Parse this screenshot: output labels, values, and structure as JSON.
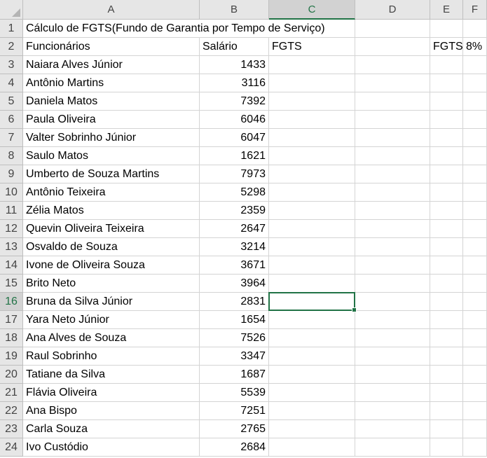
{
  "columns": [
    {
      "letter": "A"
    },
    {
      "letter": "B"
    },
    {
      "letter": "C"
    },
    {
      "letter": "D"
    },
    {
      "letter": "E"
    },
    {
      "letter": "F"
    }
  ],
  "selected_cell": {
    "column": "C",
    "row": 16
  },
  "title": "Cálculo de FGTS(Fundo de Garantia por Tempo de Serviço)",
  "headers": {
    "A": "Funcionários",
    "B": "Salário",
    "C": "FGTS",
    "E": "FGTS",
    "F": "8%"
  },
  "employees": [
    {
      "name": "Naiara Alves Júnior",
      "salary": 1433
    },
    {
      "name": "Antônio Martins",
      "salary": 3116
    },
    {
      "name": "Daniela Matos",
      "salary": 7392
    },
    {
      "name": "Paula Oliveira",
      "salary": 6046
    },
    {
      "name": "Valter Sobrinho Júnior",
      "salary": 6047
    },
    {
      "name": "Saulo Matos",
      "salary": 1621
    },
    {
      "name": "Umberto de Souza Martins",
      "salary": 7973
    },
    {
      "name": "Antônio Teixeira",
      "salary": 5298
    },
    {
      "name": "Zélia Matos",
      "salary": 2359
    },
    {
      "name": "Quevin Oliveira Teixeira",
      "salary": 2647
    },
    {
      "name": "Osvaldo de Souza",
      "salary": 3214
    },
    {
      "name": "Ivone de Oliveira Souza",
      "salary": 3671
    },
    {
      "name": "Brito Neto",
      "salary": 3964
    },
    {
      "name": "Bruna da Silva Júnior",
      "salary": 2831
    },
    {
      "name": "Yara Neto Júnior",
      "salary": 1654
    },
    {
      "name": "Ana Alves de Souza",
      "salary": 7526
    },
    {
      "name": "Raul Sobrinho",
      "salary": 3347
    },
    {
      "name": "Tatiane da Silva",
      "salary": 1687
    },
    {
      "name": "Flávia Oliveira",
      "salary": 5539
    },
    {
      "name": "Ana Bispo",
      "salary": 7251
    },
    {
      "name": "Carla Souza",
      "salary": 2765
    },
    {
      "name": "Ivo Custódio",
      "salary": 2684
    }
  ],
  "row_numbers": [
    1,
    2,
    3,
    4,
    5,
    6,
    7,
    8,
    9,
    10,
    11,
    12,
    13,
    14,
    15,
    16,
    17,
    18,
    19,
    20,
    21,
    22,
    23,
    24
  ]
}
